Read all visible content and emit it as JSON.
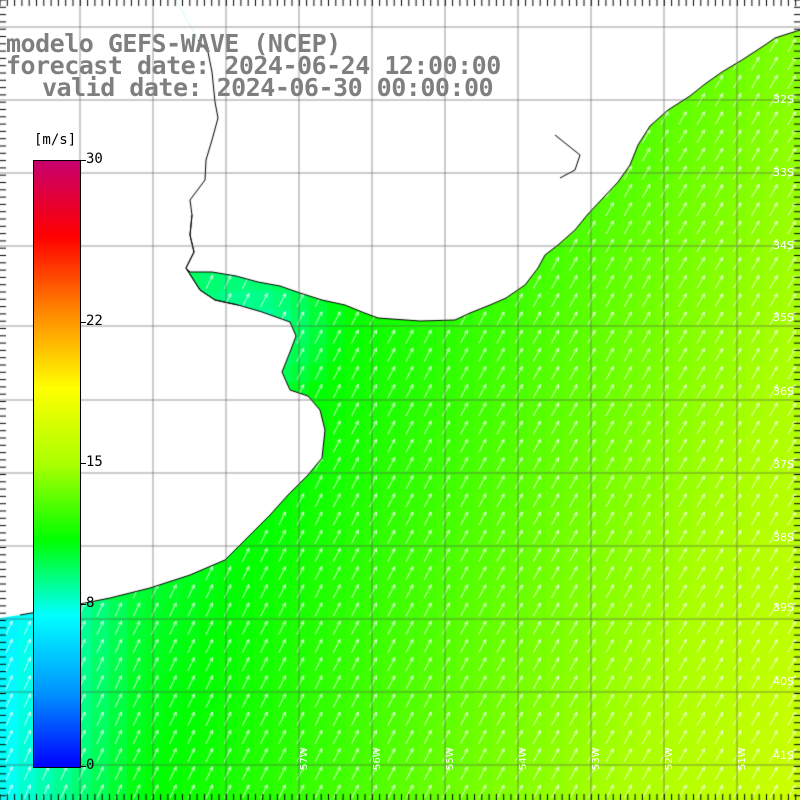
{
  "header": {
    "model": "modelo GEFS-WAVE (NCEP)",
    "forecast": "forecast date: 2024-06-24 12:00:00",
    "valid": "valid date: 2024-06-30 00:00:00"
  },
  "colorbar": {
    "unit": "[m/s]",
    "ticks": [
      {
        "label": "30",
        "value": 30
      },
      {
        "label": "22",
        "value": 22
      },
      {
        "label": "15",
        "value": 15
      },
      {
        "label": "8",
        "value": 8
      },
      {
        "label": "0",
        "value": 0
      }
    ],
    "range": [
      0,
      30
    ],
    "colors": [
      "#0000ff",
      "#0096ff",
      "#00ffff",
      "#00ff00",
      "#aaff00",
      "#ffff00",
      "#ff8800",
      "#ff0000",
      "#c8006e"
    ]
  },
  "map": {
    "lat_labels": [
      "32S",
      "33S",
      "34S",
      "35S",
      "36S",
      "37S",
      "38S",
      "39S",
      "40S",
      "41S"
    ],
    "lon_labels": [
      "57W",
      "56W",
      "55W",
      "54W",
      "53W",
      "52W",
      "51W"
    ],
    "land_color": "#ffffff",
    "coast_color": "#000000",
    "arrow_color": "#ffffff",
    "wind_direction": "from south-southwest (arrows point north-northeast)"
  }
}
